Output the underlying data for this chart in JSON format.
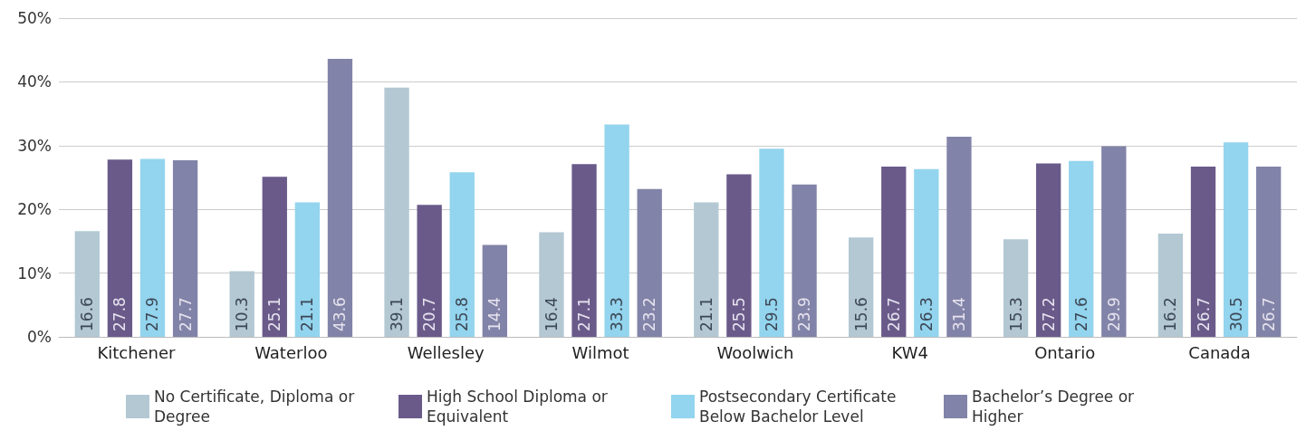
{
  "chart_data": {
    "type": "bar",
    "categories": [
      "Kitchener",
      "Waterloo",
      "Wellesley",
      "Wilmot",
      "Woolwich",
      "KW4",
      "Ontario",
      "Canada"
    ],
    "series": [
      {
        "name": "No Certificate, Diploma or Degree",
        "color": "#b3c8d3",
        "values": [
          16.6,
          10.3,
          39.1,
          16.4,
          21.1,
          15.6,
          15.3,
          16.2
        ]
      },
      {
        "name": "High School Diploma or Equivalent",
        "color": "#6a5a8a",
        "values": [
          27.8,
          25.1,
          20.7,
          27.1,
          25.5,
          26.7,
          27.2,
          26.7
        ]
      },
      {
        "name": "Postsecondary Certificate Below Bachelor Level",
        "color": "#93d4ee",
        "values": [
          27.9,
          21.1,
          25.8,
          33.3,
          29.5,
          26.3,
          27.6,
          30.5
        ]
      },
      {
        "name": "Bachelor’s Degree or Higher",
        "color": "#8283a8",
        "values": [
          27.7,
          43.6,
          14.4,
          23.2,
          23.9,
          31.4,
          29.9,
          26.7
        ]
      }
    ],
    "ylim": [
      0,
      50
    ],
    "yticks": [
      {
        "value": 0,
        "label": "0%"
      },
      {
        "value": 10,
        "label": "10%"
      },
      {
        "value": 20,
        "label": "20%"
      },
      {
        "value": 30,
        "label": "30%"
      },
      {
        "value": 40,
        "label": "40%"
      },
      {
        "value": 50,
        "label": "50%"
      }
    ],
    "grid": "y",
    "legend": "bottom",
    "data_labels": true
  }
}
